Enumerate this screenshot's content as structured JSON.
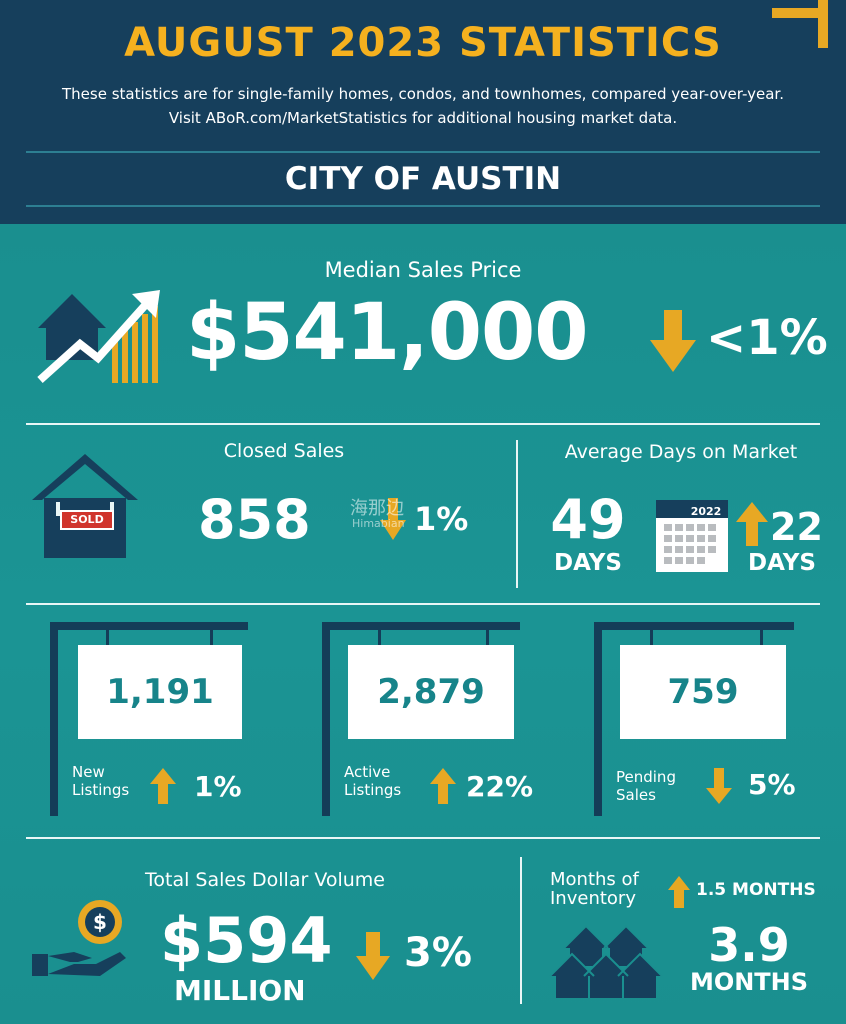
{
  "header": {
    "title": "AUGUST 2023 STATISTICS",
    "subtitle_line1": "These statistics are for single-family homes, condos, and townhomes, compared year-over-year.",
    "subtitle_line2": "Visit ABoR.com/MarketStatistics for additional housing market data.",
    "city": "CITY OF AUSTIN"
  },
  "median_price": {
    "label": "Median Sales Price",
    "value": "$541,000",
    "change": "<1%",
    "direction": "down"
  },
  "closed_sales": {
    "label": "Closed Sales",
    "value": "858",
    "change": "1%",
    "direction": "down",
    "sign_text": "SOLD"
  },
  "days_on_market": {
    "label": "Average Days on Market",
    "value": "49",
    "unit": "DAYS",
    "calendar_year": "2022",
    "change": "22",
    "change_unit": "DAYS",
    "direction": "up"
  },
  "new_listings": {
    "value": "1,191",
    "label_line1": "New",
    "label_line2": "Listings",
    "change": "1%",
    "direction": "up"
  },
  "active_listings": {
    "value": "2,879",
    "label_line1": "Active",
    "label_line2": "Listings",
    "change": "22%",
    "direction": "up"
  },
  "pending_sales": {
    "value": "759",
    "label_line1": "Pending",
    "label_line2": "Sales",
    "change": "5%",
    "direction": "down"
  },
  "dollar_volume": {
    "label": "Total Sales Dollar Volume",
    "value": "$594",
    "unit": "MILLION",
    "change": "3%",
    "direction": "down"
  },
  "inventory": {
    "label_line1": "Months of",
    "label_line2": "Inventory",
    "change": "1.5 MONTHS",
    "direction": "up",
    "value": "3.9",
    "unit": "MONTHS"
  },
  "watermark": {
    "line1": "海那边",
    "line2": "Himabian"
  },
  "colors": {
    "navy": "#163f5c",
    "gold": "#e7a824",
    "teal": "#1a8f8f",
    "sign_text": "#17848a"
  }
}
